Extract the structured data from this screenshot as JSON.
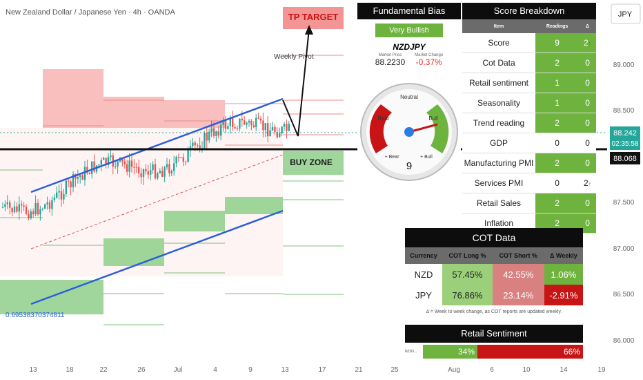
{
  "chart_data": {
    "type": "candlestick",
    "title": "New Zealand Dollar / Japanese Yen · 4h · OANDA",
    "y_ticks": [
      "89.000",
      "88.500",
      "88.000",
      "87.500",
      "87.000",
      "86.500",
      "86.000"
    ],
    "x_ticks": [
      "13",
      "18",
      "22",
      "26",
      "Jul",
      "4",
      "9",
      "13",
      "17",
      "21",
      "25",
      "Aug",
      "6",
      "10",
      "14",
      "19"
    ],
    "ylim": [
      85.7,
      89.7
    ],
    "currency_button": "JPY",
    "current_price": "88.242",
    "countdown": "02:35:58",
    "level_price": "88.068",
    "annotations": {
      "tp_target": "TP TARGET",
      "buy_zone": "BUY ZONE",
      "weekly_pivot": "Weekly Pivot",
      "channel_label": "0.69538370374811"
    },
    "levels": {
      "current": 88.242,
      "support": 88.068,
      "tp_target": 89.35
    }
  },
  "fundamental": {
    "header": "Fundamental Bias",
    "bias": "Very Bullish",
    "pair": "NZDJPY",
    "market_price_caption": "Market Price",
    "market_price": "88.2230",
    "market_change_caption": "Market Change",
    "market_change": "-0.37%",
    "gauge": {
      "neutral": "Neutral",
      "bear": "Bear",
      "bull": "Bull",
      "plus_bear": "+ Bear",
      "plus_bull": "+ Bull",
      "value": "9"
    }
  },
  "score": {
    "header": "Score Breakdown",
    "columns": [
      "Item",
      "Readings",
      "Δ"
    ],
    "rows": [
      {
        "item": "Score",
        "reading": "9",
        "delta": "2",
        "arrow": "↑",
        "hl": true
      },
      {
        "item": "Cot Data",
        "reading": "2",
        "delta": "0",
        "arrow": "",
        "hl": true
      },
      {
        "item": "Retail sentiment",
        "reading": "1",
        "delta": "0",
        "arrow": "",
        "hl": true
      },
      {
        "item": "Seasonality",
        "reading": "1",
        "delta": "0",
        "arrow": "",
        "hl": true
      },
      {
        "item": "Trend reading",
        "reading": "2",
        "delta": "0",
        "arrow": "",
        "hl": true
      },
      {
        "item": "GDP",
        "reading": "0",
        "delta": "0",
        "arrow": "",
        "hl": false
      },
      {
        "item": "Manufacturing PMI",
        "reading": "2",
        "delta": "0",
        "arrow": "",
        "hl": true
      },
      {
        "item": "Services PMI",
        "reading": "0",
        "delta": "2",
        "arrow": "↑",
        "hl": false
      },
      {
        "item": "Retail Sales",
        "reading": "2",
        "delta": "0",
        "arrow": "",
        "hl": true
      },
      {
        "item": "Inflation",
        "reading": "2",
        "delta": "0",
        "arrow": "",
        "hl": true
      }
    ]
  },
  "cot": {
    "header": "COT Data",
    "columns": [
      "Currency",
      "COT Long %",
      "COT Short %",
      "Δ Weekly"
    ],
    "rows": [
      {
        "currency": "NZD",
        "long": "57.45%",
        "short": "42.55%",
        "weekly": "1.06%",
        "wcolor": "#6fb33f"
      },
      {
        "currency": "JPY",
        "long": "76.86%",
        "short": "23.14%",
        "weekly": "-2.91%",
        "wcolor": "#c81414"
      }
    ],
    "note": "Δ = Week to week change, as COT reports are updated weekly."
  },
  "retail": {
    "header": "Retail Sentiment",
    "label": "NZD3...",
    "long": "34%",
    "short": "66%",
    "long_fraction": 0.34
  },
  "colors": {
    "green": "#6fb33f",
    "red": "#c81414",
    "channel": "#2a5fd8",
    "price_tag": "#26a69a"
  }
}
